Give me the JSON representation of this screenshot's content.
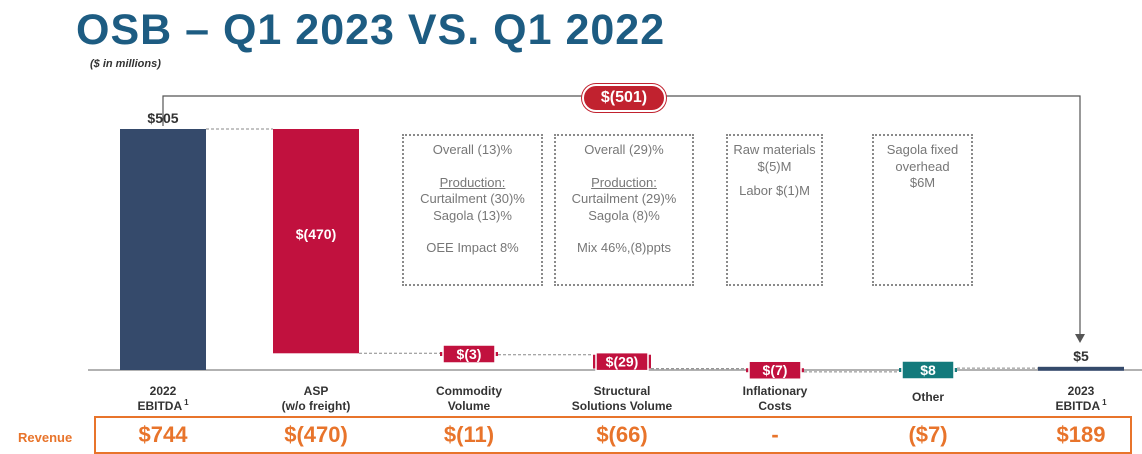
{
  "title": "OSB – Q1 2023 VS. Q1 2022",
  "subtitle": "($ in millions)",
  "total_change_label": "$(501)",
  "colors": {
    "total": "#354a6b",
    "negative": "#c1113e",
    "positive": "#137a7c",
    "accent": "#1d5c82",
    "revenue": "#e8742b"
  },
  "chart_data": {
    "type": "bar",
    "subtype": "waterfall",
    "title": "OSB – Q1 2023 VS. Q1 2022",
    "unit": "($ in millions)",
    "categories": [
      "2022 EBITDA",
      "ASP (w/o freight)",
      "Commodity Volume",
      "Structural Solutions Volume",
      "Inflationary Costs",
      "Other",
      "2023 EBITDA"
    ],
    "values": [
      505,
      -470,
      -3,
      -29,
      -7,
      8,
      5
    ],
    "kinds": [
      "total",
      "delta",
      "delta",
      "delta",
      "delta",
      "delta",
      "total"
    ],
    "value_labels": [
      "$505",
      "$(470)",
      "$(3)",
      "$(29)",
      "$(7)",
      "$8",
      "$5"
    ],
    "total_change": -501,
    "ylim": [
      0,
      505
    ]
  },
  "categories_display": [
    {
      "line1": "2022",
      "line2": "EBITDA",
      "sup": "1"
    },
    {
      "line1": "ASP",
      "line2": "(w/o freight)",
      "sup": ""
    },
    {
      "line1": "Commodity",
      "line2": "Volume",
      "sup": ""
    },
    {
      "line1": "Structural",
      "line2": "Solutions Volume",
      "sup": ""
    },
    {
      "line1": "Inflationary",
      "line2": "Costs",
      "sup": ""
    },
    {
      "line1": "Other",
      "line2": "",
      "sup": ""
    },
    {
      "line1": "2023",
      "line2": "EBITDA",
      "sup": "1"
    }
  ],
  "notes": {
    "commodity": {
      "overall": "Overall (13)%",
      "heading": "Production:",
      "l1": "Curtailment (30)%",
      "l2": "Sagola (13)%",
      "l3": "OEE Impact 8%"
    },
    "structural": {
      "overall": "Overall (29)%",
      "heading": "Production:",
      "l1": "Curtailment (29)%",
      "l2": "Sagola (8)%",
      "l3": "Mix 46%,(8)ppts"
    },
    "inflation": {
      "l1": "Raw materials",
      "l2": "$(5)M",
      "l3": "Labor $(1)M"
    },
    "other": {
      "l1": "Sagola fixed",
      "l2": "overhead",
      "l3": "$6M"
    }
  },
  "revenue": {
    "label": "Revenue",
    "values": [
      "$744",
      "$(470)",
      "$(11)",
      "$(66)",
      "-",
      "($7)",
      "$189"
    ]
  }
}
